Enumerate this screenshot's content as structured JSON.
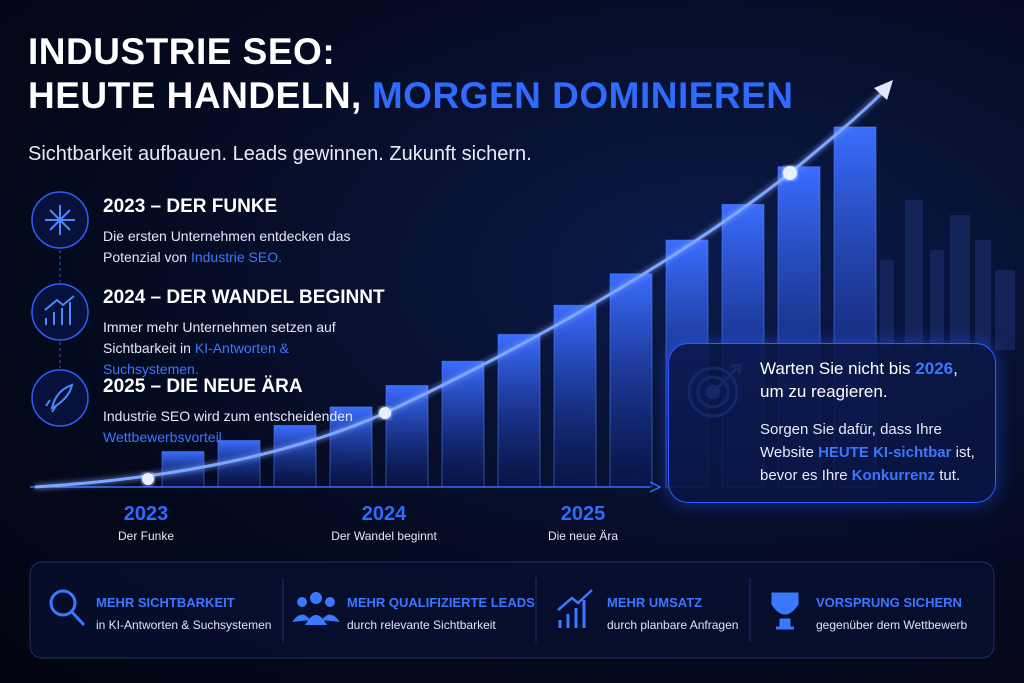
{
  "header": {
    "title": [
      "INDUSTRIE SEO:",
      "HEUTE HANDELN,",
      "MORGEN DOMINIEREN"
    ],
    "subtitle": "Sichtbarkeit aufbauen. Leads gewinnen. Zukunft sichern."
  },
  "milestones": [
    {
      "heading": "2023 – DER FUNKE",
      "body": [
        "Die ersten Unternehmen entdecken das Potenzial von ",
        "Industrie SEO."
      ]
    },
    {
      "heading": "2024 – DER WANDEL BEGINNT",
      "body": [
        "Immer mehr Unternehmen setzen auf Sichtbarkeit in ",
        "KI-Antworten & Suchsystemen."
      ]
    },
    {
      "heading": "2025 – DIE NEUE ÄRA",
      "body": [
        "Industrie SEO wird zum entscheidenden ",
        "Wettbewerbsvorteil."
      ]
    }
  ],
  "timeline": [
    {
      "year": "2023",
      "label": "Der Funke"
    },
    {
      "year": "2024",
      "label": "Der Wandel beginnt"
    },
    {
      "year": "2025",
      "label": "Die neue Ära"
    }
  ],
  "callout": {
    "heading": [
      "Warten Sie nicht bis ",
      "2026",
      ", um zu reagieren."
    ],
    "body": [
      "Sorgen Sie dafür, dass Ihre Website ",
      "HEUTE KI-sichtbar",
      " ist, bevor es Ihre ",
      "Konkurrenz",
      " tut."
    ]
  },
  "benefits": [
    {
      "title": "MEHR SICHTBARKEIT",
      "text": "in KI-Antworten & Suchsystemen"
    },
    {
      "title": "MEHR QUALIFIZIERTE LEADS",
      "text": "durch relevante Sichtbarkeit"
    },
    {
      "title": "MEHR UMSATZ",
      "text": "durch planbare Anfragen"
    },
    {
      "title": "VORSPRUNG SICHERN",
      "text": "gegenüber dem Wettbewerb"
    }
  ]
}
